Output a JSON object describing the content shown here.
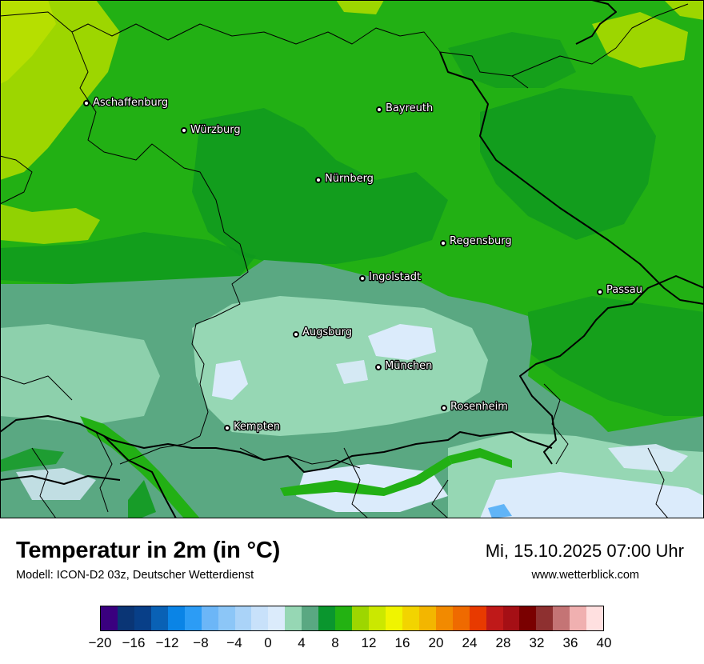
{
  "map": {
    "cities": [
      {
        "name": "Aschaffenburg"
      },
      {
        "name": "Würzburg"
      },
      {
        "name": "Bayreuth"
      },
      {
        "name": "Nürnberg"
      },
      {
        "name": "Regensburg"
      },
      {
        "name": "Ingolstadt"
      },
      {
        "name": "Passau"
      },
      {
        "name": "Augsburg"
      },
      {
        "name": "München"
      },
      {
        "name": "Rosenheim"
      },
      {
        "name": "Kempten"
      }
    ]
  },
  "title": "Temperatur in 2m (in °C)",
  "model": "Modell: ICON-D2 03z, Deutscher Wetterdienst",
  "datetime": "Mi, 15.10.2025 07:00 Uhr",
  "website": "www.wetterblick.com",
  "legend": {
    "unit": "°C",
    "min": -20,
    "max": 40,
    "step": 2,
    "tick_labels": [
      "−20",
      "−16",
      "−12",
      "−8",
      "−4",
      "0",
      "4",
      "8",
      "12",
      "16",
      "20",
      "24",
      "28",
      "32",
      "36",
      "40"
    ],
    "colors": [
      "#3a007f",
      "#0a3575",
      "#083f88",
      "#0961b5",
      "#0a84e6",
      "#2c9cf5",
      "#6cb6f7",
      "#8cc6f7",
      "#aad3f8",
      "#c8e1fa",
      "#dbebfb",
      "#96d7b4",
      "#5aa882",
      "#0a962e",
      "#23b212",
      "#9dd600",
      "#cbe800",
      "#f0f400",
      "#f2d400",
      "#f3b600",
      "#f28a00",
      "#ef6a00",
      "#e83a00",
      "#bf1919",
      "#a50f15",
      "#7a0000",
      "#8e3030",
      "#c47475",
      "#f0b0b0",
      "#ffe0e0"
    ]
  },
  "map_colors": {
    "green_dark": "#0f9a1e",
    "green_mid": "#22b014",
    "green_light": "#9dd600",
    "mint": "#96d7b4",
    "gray_green": "#5aa882",
    "pale_blue": "#dbebfb"
  }
}
